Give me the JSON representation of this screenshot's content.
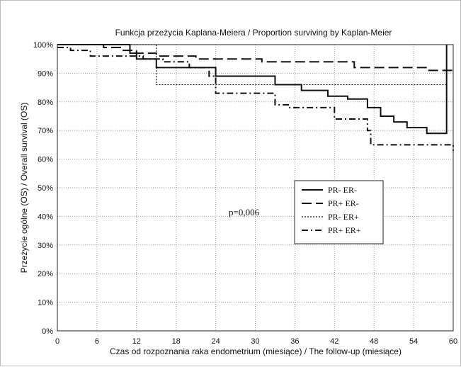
{
  "chart_data": {
    "type": "line",
    "title": "Funkcja przeżycia Kaplana-Meiera / Proportion surviving by Kaplan-Meier",
    "xlabel": "Czas od rozpoznania raka endometrium (miesiące) / The follow-up (miesiące)",
    "ylabel": "Przeżycie ogólne (OS) / Overall survival (OS)",
    "xlim": [
      0,
      60
    ],
    "ylim": [
      0,
      100
    ],
    "x_ticks": [
      0,
      6,
      12,
      18,
      24,
      30,
      36,
      42,
      48,
      54,
      60
    ],
    "x_tick_labels": [
      "0",
      "6",
      "12",
      "18",
      "24",
      "30",
      "36",
      "42",
      "48",
      "54",
      "60"
    ],
    "y_ticks": [
      0,
      10,
      20,
      30,
      40,
      50,
      60,
      70,
      80,
      90,
      100
    ],
    "y_tick_labels": [
      "0%",
      "10%",
      "20%",
      "30%",
      "40%",
      "50%",
      "60%",
      "70%",
      "80%",
      "90%",
      "100%"
    ],
    "grid": true,
    "legend_position": "center-right",
    "annotation": "p=0,006",
    "series": [
      {
        "name": "PR- ER-",
        "dash": "solid",
        "stroke_width": 2,
        "x": [
          0,
          11,
          12,
          15,
          24,
          33,
          37,
          41,
          44,
          47,
          49,
          51,
          53,
          56,
          59
        ],
        "y": [
          100,
          97,
          95,
          92,
          89,
          86,
          84,
          82,
          81,
          78,
          75,
          73,
          71,
          69,
          100
        ]
      },
      {
        "name": "PR+ ER-",
        "dash": "dashed",
        "stroke_width": 2,
        "x": [
          0,
          7,
          10,
          12,
          15,
          21,
          31,
          45,
          56,
          60
        ],
        "y": [
          100,
          99,
          98,
          97,
          96,
          95,
          94,
          92,
          91,
          91
        ]
      },
      {
        "name": "PR- ER+",
        "dash": "dotted",
        "stroke_width": 1.2,
        "x": [
          0,
          15,
          59
        ],
        "y": [
          100,
          86,
          69
        ]
      },
      {
        "name": "PR+ ER+",
        "dash": "dashdot",
        "stroke_width": 2,
        "x": [
          0,
          2,
          5,
          13,
          16,
          20,
          23,
          24,
          33,
          35,
          42,
          47,
          47.5,
          60
        ],
        "y": [
          99,
          98,
          96,
          95,
          94,
          92,
          89,
          83,
          79,
          78,
          74,
          70,
          65,
          63
        ]
      }
    ]
  }
}
